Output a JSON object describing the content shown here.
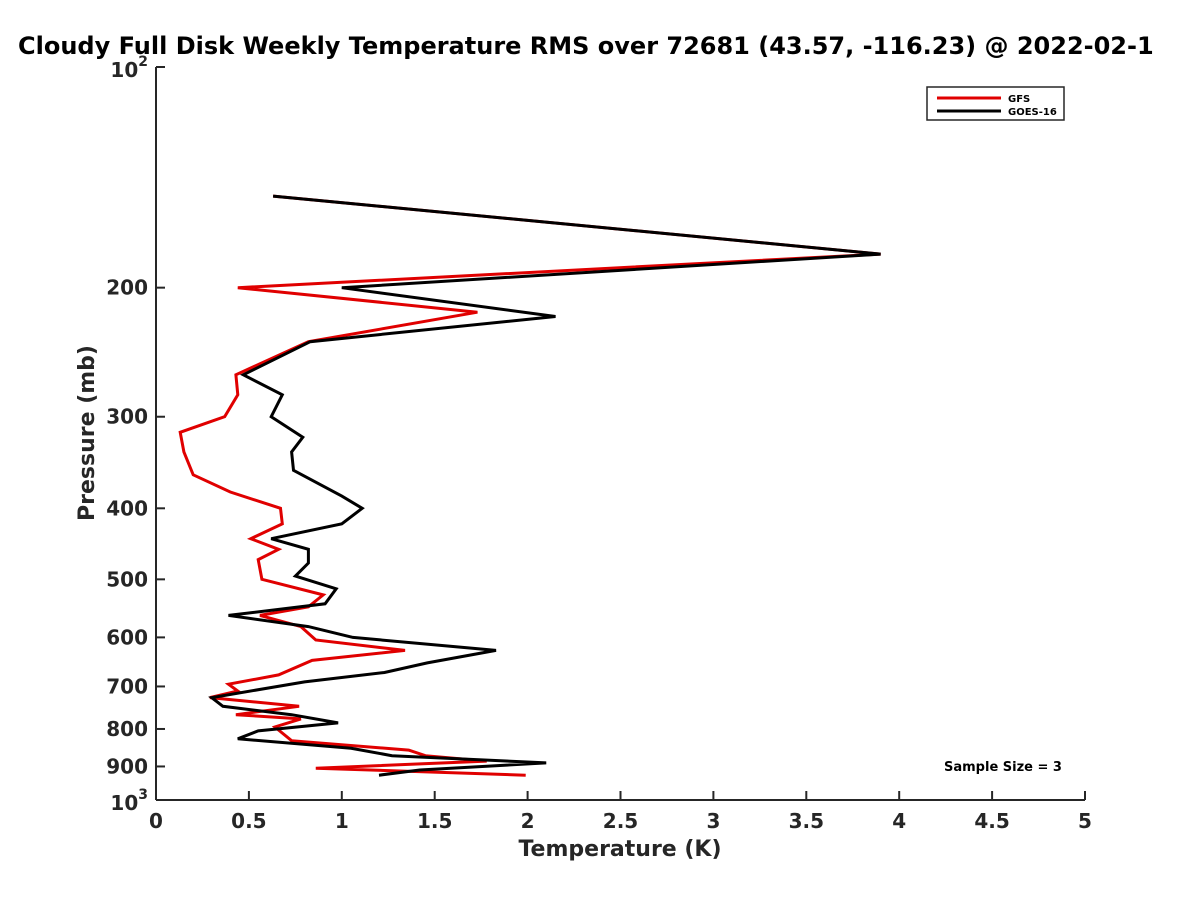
{
  "chart_data": {
    "type": "line",
    "title": "Cloudy Full Disk Weekly Temperature RMS over 72681 (43.57, -116.23) @ 2022-02-1",
    "xlabel": "Temperature (K)",
    "ylabel": "Pressure (mb)",
    "xlim": [
      0,
      5
    ],
    "ylim": [
      1000,
      100
    ],
    "y_scale": "log",
    "y_reversed": true,
    "grid": false,
    "legend_position": "top-right",
    "x_ticks": [
      {
        "value": 0,
        "label": "0"
      },
      {
        "value": 0.5,
        "label": "0.5"
      },
      {
        "value": 1,
        "label": "1"
      },
      {
        "value": 1.5,
        "label": "1.5"
      },
      {
        "value": 2,
        "label": "2"
      },
      {
        "value": 2.5,
        "label": "2.5"
      },
      {
        "value": 3,
        "label": "3"
      },
      {
        "value": 3.5,
        "label": "3.5"
      },
      {
        "value": 4,
        "label": "4"
      },
      {
        "value": 4.5,
        "label": "4.5"
      },
      {
        "value": 5,
        "label": "5"
      }
    ],
    "y_ticks": [
      {
        "value": 100,
        "base": "10",
        "exp": "2"
      },
      {
        "value": 200,
        "label": "200"
      },
      {
        "value": 300,
        "label": "300"
      },
      {
        "value": 400,
        "label": "400"
      },
      {
        "value": 500,
        "label": "500"
      },
      {
        "value": 600,
        "label": "600"
      },
      {
        "value": 700,
        "label": "700"
      },
      {
        "value": 800,
        "label": "800"
      },
      {
        "value": 900,
        "label": "900"
      },
      {
        "value": 1000,
        "base": "10",
        "exp": "3"
      }
    ],
    "series": [
      {
        "name": "GFS",
        "color": "#e00000",
        "points": [
          [
            0.63,
            150
          ],
          [
            3.9,
            180
          ],
          [
            0.44,
            200
          ],
          [
            1.73,
            216
          ],
          [
            0.82,
            237
          ],
          [
            0.43,
            263
          ],
          [
            0.44,
            280
          ],
          [
            0.37,
            300
          ],
          [
            0.13,
            315
          ],
          [
            0.15,
            335
          ],
          [
            0.2,
            360
          ],
          [
            0.4,
            380
          ],
          [
            0.67,
            400
          ],
          [
            0.68,
            420
          ],
          [
            0.51,
            440
          ],
          [
            0.66,
            455
          ],
          [
            0.55,
            470
          ],
          [
            0.57,
            500
          ],
          [
            0.9,
            525
          ],
          [
            0.82,
            545
          ],
          [
            0.56,
            560
          ],
          [
            0.78,
            580
          ],
          [
            0.86,
            605
          ],
          [
            1.34,
            625
          ],
          [
            0.84,
            645
          ],
          [
            0.66,
            675
          ],
          [
            0.39,
            695
          ],
          [
            0.44,
            710
          ],
          [
            0.29,
            725
          ],
          [
            0.77,
            745
          ],
          [
            0.43,
            765
          ],
          [
            0.78,
            775
          ],
          [
            0.64,
            795
          ],
          [
            0.73,
            830
          ],
          [
            1.36,
            855
          ],
          [
            1.45,
            870
          ],
          [
            1.78,
            885
          ],
          [
            0.86,
            905
          ],
          [
            1.99,
            925
          ]
        ]
      },
      {
        "name": "GOES-16",
        "color": "#000000",
        "points": [
          [
            0.63,
            150
          ],
          [
            3.9,
            180
          ],
          [
            1.0,
            200
          ],
          [
            2.15,
            219
          ],
          [
            0.83,
            237
          ],
          [
            0.47,
            263
          ],
          [
            0.68,
            280
          ],
          [
            0.62,
            300
          ],
          [
            0.79,
            320
          ],
          [
            0.73,
            335
          ],
          [
            0.74,
            355
          ],
          [
            1.0,
            385
          ],
          [
            1.11,
            400
          ],
          [
            1.0,
            420
          ],
          [
            0.62,
            440
          ],
          [
            0.82,
            455
          ],
          [
            0.82,
            475
          ],
          [
            0.75,
            495
          ],
          [
            0.97,
            515
          ],
          [
            0.91,
            540
          ],
          [
            0.39,
            560
          ],
          [
            0.82,
            580
          ],
          [
            1.06,
            600
          ],
          [
            1.83,
            625
          ],
          [
            1.46,
            650
          ],
          [
            1.23,
            670
          ],
          [
            0.8,
            690
          ],
          [
            0.3,
            725
          ],
          [
            0.36,
            745
          ],
          [
            0.73,
            765
          ],
          [
            0.98,
            785
          ],
          [
            0.55,
            805
          ],
          [
            0.44,
            825
          ],
          [
            1.05,
            850
          ],
          [
            1.27,
            870
          ],
          [
            2.1,
            890
          ],
          [
            1.42,
            910
          ],
          [
            1.2,
            925
          ]
        ]
      }
    ],
    "annotation": "Sample Size = 3"
  }
}
